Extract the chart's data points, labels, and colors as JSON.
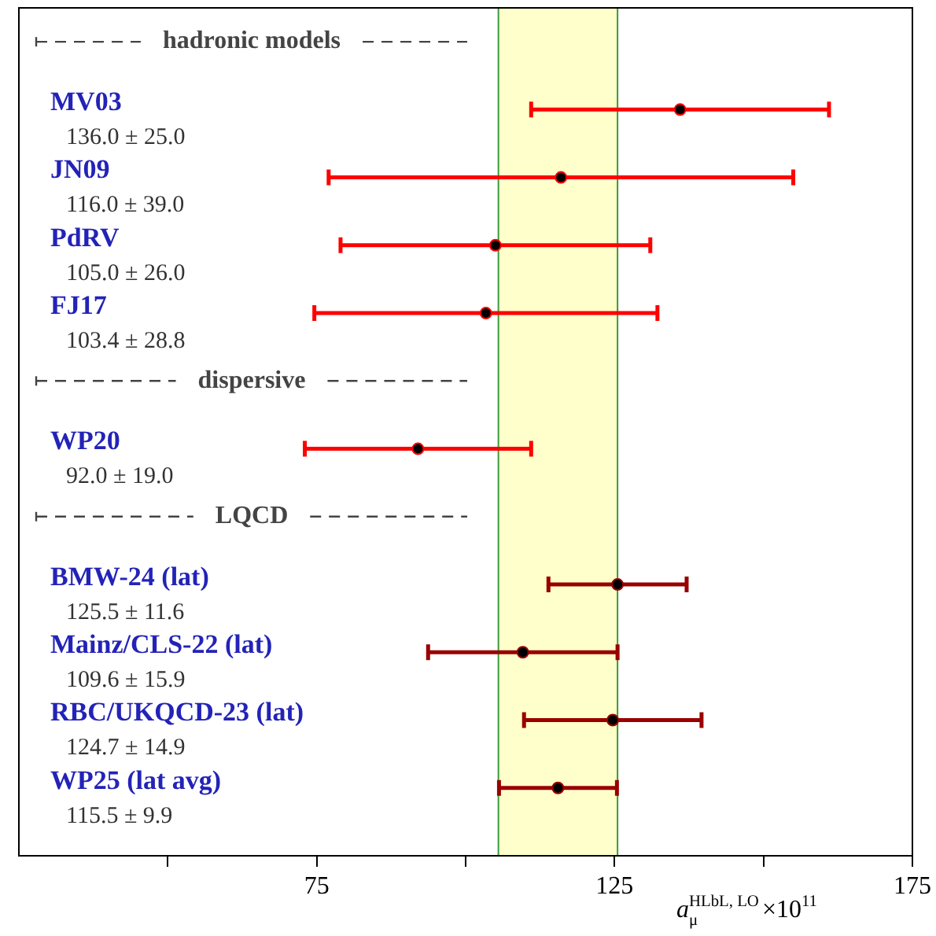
{
  "chart_data": {
    "type": "scatter",
    "orientation": "horizontal",
    "xlabel": "a$_{μ}$$^{HLbL, LO}$×10$^{11}$",
    "categories": [
      null,
      "MV03\n136.0 ± 25.0",
      "JN09\n116.0 ± 39.0",
      "PdRV\n105.0 ± 26.0",
      "FJ17\n103.4 ± 28.8",
      null,
      "WP20\n92.0 ± 19.0",
      null,
      "BMW-24 (lat)\n125.5 ± 11.6",
      "Mainz/CLS-22 (lat)\n109.6 ± 15.9",
      "RBC/UKQCD-23 (lat)\n124.7 ± 14.9",
      "WP25 (lat avg)\n115.5 ± 9.9"
    ],
    "values": [
      null,
      136.0,
      116.0,
      105.0,
      103.4,
      null,
      92.0,
      null,
      125.5,
      109.6,
      124.7,
      115.5
    ],
    "errors": [
      null,
      25.0,
      39.0,
      26.0,
      28.8,
      null,
      19.0,
      null,
      11.6,
      15.9,
      14.9,
      9.9
    ],
    "color": "#000000",
    "colors": [
      null,
      "#ff0000",
      "#ff0000",
      "#ff0000",
      "#ff0000",
      null,
      "#ff0000",
      null,
      "#990000",
      "#990000",
      "#990000",
      "#990000"
    ],
    "annotations": [
      "hadronic models",
      "dispersive",
      "LQCD"
    ],
    "bands": [
      {
        "axis": "x",
        "from": 105.5,
        "to": 125.5,
        "color": "#ffffcc"
      }
    ],
    "xlim": [
      25,
      175
    ],
    "xticks": [
      {
        "value": 50,
        "label": null
      },
      75,
      {
        "value": 100,
        "label": null
      },
      125,
      {
        "value": 150,
        "label": null
      },
      175
    ],
    "tick_labels": "x",
    "marker": "circle",
    "grid": false,
    "legend": false
  }
}
